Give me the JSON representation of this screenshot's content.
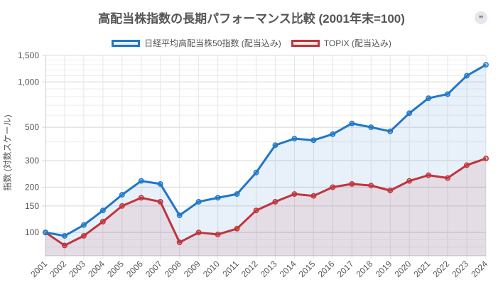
{
  "header": {
    "title": "高配当株指数の長期パフォーマンス比較 (2001年末=100)",
    "quote_button": "”"
  },
  "chart_data": {
    "type": "line",
    "title": "高配当株指数の長期パフォーマンス比較 (2001年末=100)",
    "xlabel": "",
    "ylabel": "指数 (対数スケール)",
    "yscale": "log",
    "ylim": [
      70,
      1500
    ],
    "yticks": [
      100,
      150,
      200,
      300,
      500,
      1000,
      1500
    ],
    "ytick_labels": [
      "100",
      "150",
      "200",
      "300",
      "500",
      "1,000",
      "1,500"
    ],
    "grid": true,
    "legend_position": "top",
    "categories": [
      "2001",
      "2002",
      "2003",
      "2004",
      "2005",
      "2006",
      "2007",
      "2008",
      "2009",
      "2010",
      "2011",
      "2012",
      "2013",
      "2014",
      "2015",
      "2016",
      "2017",
      "2018",
      "2019",
      "2020",
      "2021",
      "2022",
      "2023",
      "2024"
    ],
    "series": [
      {
        "name": "日経平均高配当株50指数 (配当込み)",
        "color": "#1f77c9",
        "fill": "rgba(31,119,201,0.10)",
        "values": [
          100,
          95,
          112,
          140,
          178,
          220,
          210,
          130,
          160,
          170,
          180,
          250,
          380,
          420,
          410,
          450,
          530,
          500,
          470,
          620,
          780,
          830,
          1100,
          1300
        ]
      },
      {
        "name": "TOPIX (配当込み)",
        "color": "#c0343c",
        "fill": "rgba(192,52,60,0.10)",
        "values": [
          100,
          82,
          95,
          118,
          150,
          170,
          160,
          86,
          100,
          97,
          106,
          140,
          160,
          180,
          175,
          200,
          210,
          205,
          190,
          220,
          240,
          230,
          280,
          310
        ]
      }
    ]
  }
}
